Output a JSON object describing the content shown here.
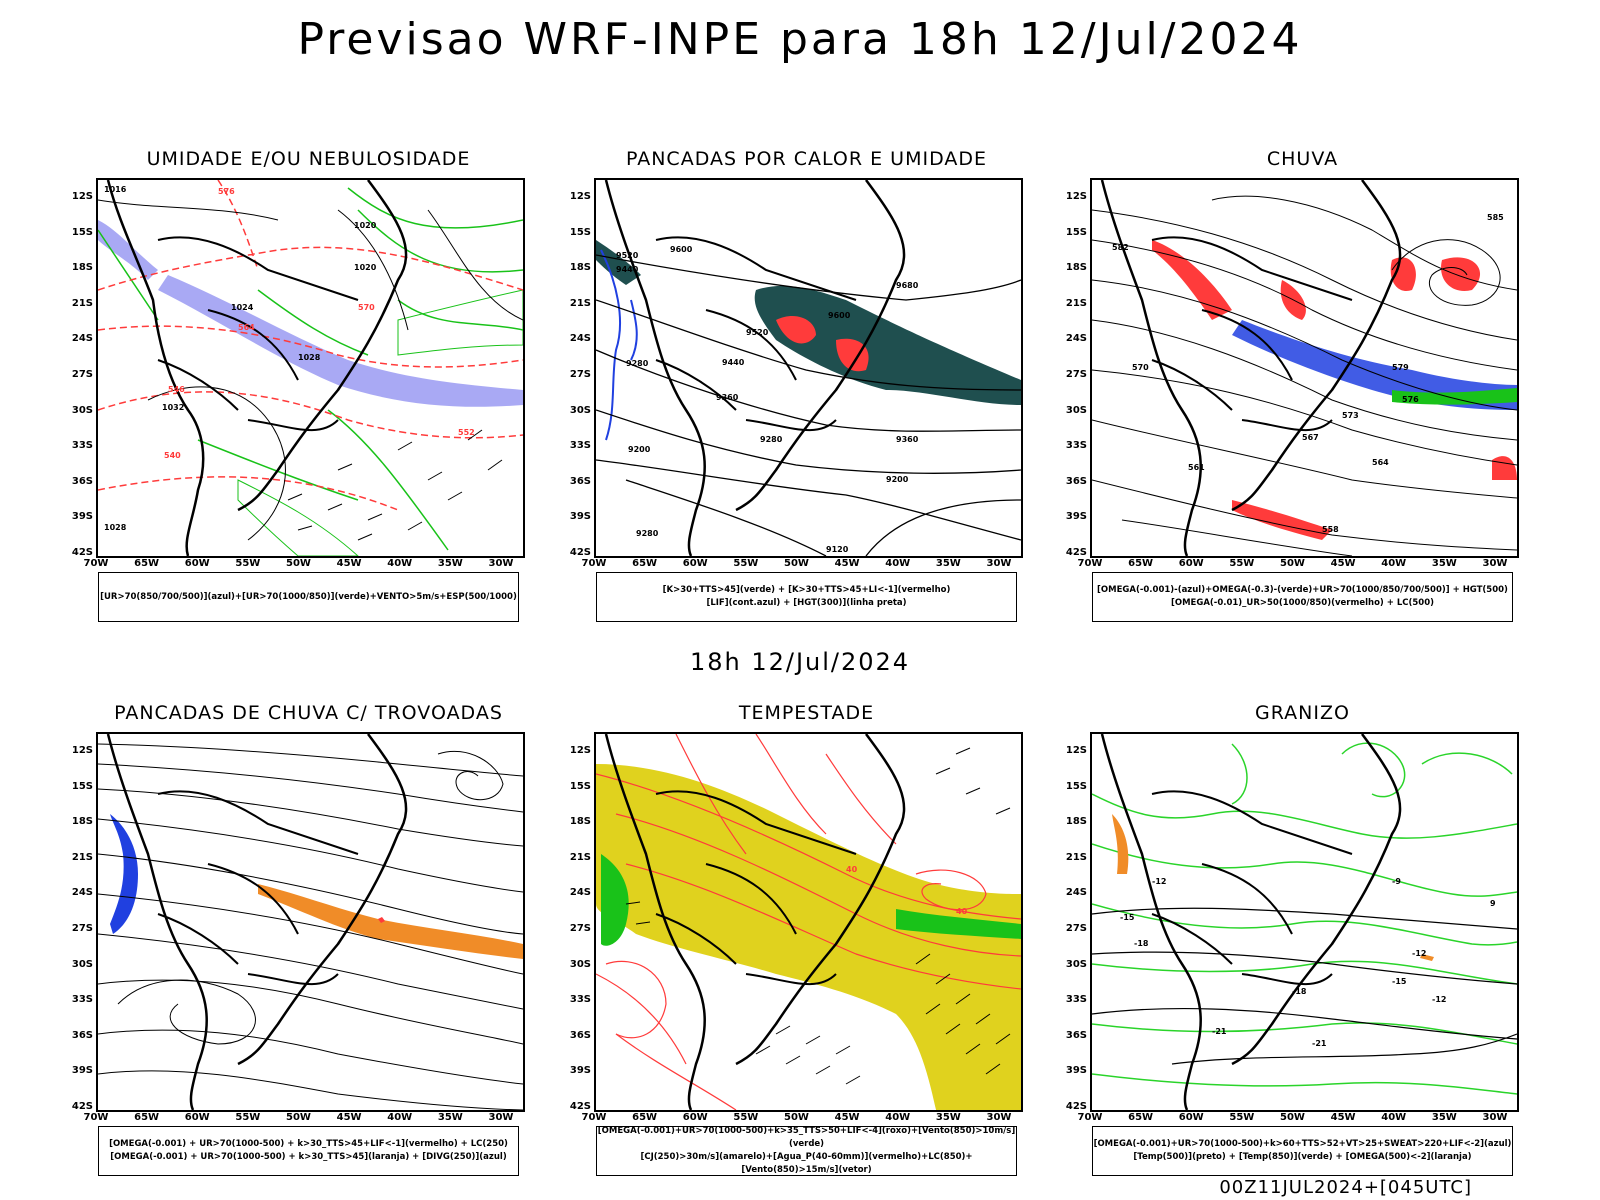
{
  "title": "Previsao WRF-INPE  para 18h 12/Jul/2024",
  "subtitle": "18h 12/Jul/2024",
  "footer": "00Z11JUL2024+[045UTC]",
  "axes": {
    "lat_labels": [
      "12S",
      "15S",
      "18S",
      "21S",
      "24S",
      "27S",
      "30S",
      "33S",
      "36S",
      "39S",
      "42S"
    ],
    "lon_labels": [
      "70W",
      "65W",
      "60W",
      "55W",
      "50W",
      "45W",
      "40W",
      "35W",
      "30W"
    ]
  },
  "panels": [
    {
      "id": "umidade",
      "title": "UMIDADE E/OU NEBULOSIDADE",
      "legend": [
        "[UR>70(850/700/500)](azul)+[UR>70(1000/850)](verde)+VENTO>5m/s+ESP(500/1000)"
      ],
      "contour_labels": [
        "1016",
        "1020",
        "1020",
        "1024",
        "1028",
        "1032",
        "1028",
        "552",
        "564",
        "576",
        "570",
        "546",
        "540"
      ],
      "colors": {
        "moist_blue": "#9a9af2",
        "moist_green": "#19c219",
        "thickness": "#ff3b3b"
      }
    },
    {
      "id": "pancadas_calor",
      "title": "PANCADAS POR CALOR E UMIDADE",
      "legend": [
        "[K>30+TTS>45](verde) + [K>30+TTS>45+LI<-1](vermelho)",
        "[LIF](cont.azul) + [HGT(300)](linha preta)"
      ],
      "contour_labels": [
        "9520",
        "9600",
        "9440",
        "9680",
        "9600",
        "9520",
        "9360",
        "9280",
        "9440",
        "9360",
        "9280",
        "9200",
        "9200",
        "9280",
        "9120"
      ],
      "colors": {
        "k_green": "#1f4f4f",
        "li_red": "#ff3b3b",
        "lif_blue": "#2040e0"
      }
    },
    {
      "id": "chuva",
      "title": "CHUVA",
      "legend": [
        "[OMEGA(-0.001)-(azul)+OMEGA(-0.3)-(verde)+UR>70(1000/850/700/500)] + HGT(500)",
        "[OMEGA(-0.01)_UR>50(1000/850)(vermelho) + LC(500)"
      ],
      "contour_labels": [
        "585",
        "582",
        "579",
        "576",
        "573",
        "570",
        "567",
        "564",
        "561",
        "558"
      ],
      "colors": {
        "omega_blue": "#2040e0",
        "omega_green": "#19c219",
        "red": "#ff3b3b"
      }
    },
    {
      "id": "trovoadas",
      "title": "PANCADAS DE CHUVA C/ TROVOADAS",
      "legend": [
        "[OMEGA(-0.001) + UR>70(1000-500) + k>30_TTS>45+LIF<-1](vermelho) + LC(250)",
        "[OMEGA(-0.001) + UR>70(1000-500) + k>30_TTS>45](laranja) + [DIVG(250)](azul)"
      ],
      "contour_labels": [],
      "colors": {
        "orange": "#f08c28",
        "blue": "#2040e0",
        "red": "#ff3b3b"
      }
    },
    {
      "id": "tempestade",
      "title": "TEMPESTADE",
      "legend": [
        "[OMEGA(-0.001)+UR>70(1000-500)+k>35_TTS>50+LIF<-4](roxo)+[Vento(850)>10m/s](verde)",
        "[CJ(250)>30m/s](amarelo)+[Agua_P(40-60mm)](vermelho)+LC(850)+[Vento(850)>15m/s](vetor)"
      ],
      "contour_labels": [
        "40",
        "40"
      ],
      "colors": {
        "jet_yellow": "#e0d21e",
        "water_red": "#ff3b3b",
        "wind_green": "#19c219"
      }
    },
    {
      "id": "granizo",
      "title": "GRANIZO",
      "legend": [
        "[OMEGA(-0.001)+UR>70(1000-500)+k>60+TTS>52+VT>25+SWEAT>220+LIF<-2](azul)",
        "[Temp(500)](preto) + [Temp(850)](verde) + [OMEGA(500)<-2](laranja)"
      ],
      "contour_labels": [
        "-12",
        "-15",
        "-18",
        "-21",
        "-12",
        "-15",
        "-18",
        "-21",
        "-9",
        "-12",
        "9"
      ],
      "colors": {
        "temp850_green": "#2ad42a",
        "omega_orange": "#f08c28"
      }
    }
  ]
}
